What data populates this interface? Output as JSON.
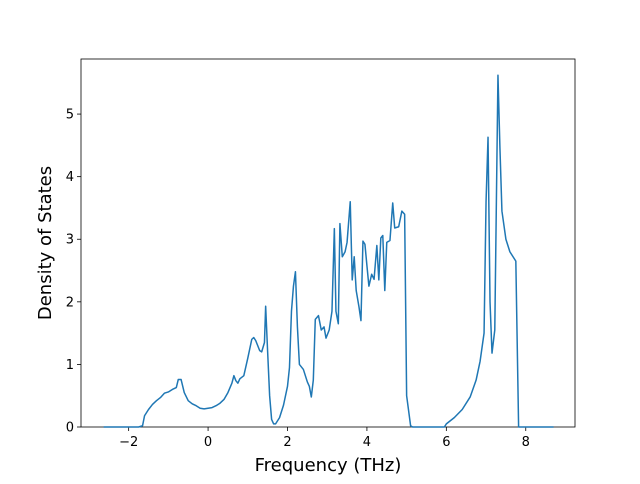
{
  "chart_data": {
    "type": "line",
    "xlabel": "Frequency (THz)",
    "ylabel": "Density of States",
    "color": "#1f77b4",
    "xlim": [
      -3.2,
      9.24
    ],
    "ylim": [
      0,
      5.88
    ],
    "xticks": [
      {
        "value": -2,
        "label": "−2"
      },
      0,
      2,
      4,
      6,
      8
    ],
    "yticks": [
      0,
      1,
      2,
      3,
      4,
      5
    ],
    "x": [
      -2.63,
      -1.75,
      -1.65,
      -1.6,
      -1.5,
      -1.4,
      -1.3,
      -1.2,
      -1.1,
      -1.0,
      -0.9,
      -0.8,
      -0.75,
      -0.68,
      -0.6,
      -0.5,
      -0.4,
      -0.3,
      -0.2,
      -0.1,
      0,
      0.1,
      0.2,
      0.3,
      0.4,
      0.5,
      0.6,
      0.65,
      0.7,
      0.75,
      0.8,
      0.9,
      1.0,
      1.1,
      1.15,
      1.2,
      1.3,
      1.35,
      1.42,
      1.45,
      1.5,
      1.55,
      1.6,
      1.65,
      1.7,
      1.8,
      1.9,
      2.0,
      2.05,
      2.1,
      2.15,
      2.2,
      2.25,
      2.3,
      2.4,
      2.5,
      2.55,
      2.6,
      2.65,
      2.7,
      2.78,
      2.85,
      2.92,
      2.97,
      3.05,
      3.12,
      3.18,
      3.22,
      3.28,
      3.32,
      3.38,
      3.45,
      3.5,
      3.58,
      3.63,
      3.68,
      3.73,
      3.8,
      3.85,
      3.9,
      3.95,
      4.0,
      4.05,
      4.12,
      4.18,
      4.25,
      4.3,
      4.35,
      4.4,
      4.45,
      4.5,
      4.58,
      4.65,
      4.7,
      4.8,
      4.88,
      4.95,
      5.0,
      5.1,
      5.15,
      5.95,
      6.0,
      6.2,
      6.4,
      6.6,
      6.75,
      6.85,
      6.95,
      7.0,
      7.05,
      7.1,
      7.15,
      7.22,
      7.3,
      7.35,
      7.4,
      7.5,
      7.6,
      7.75,
      7.82,
      8.7
    ],
    "values": [
      0,
      0,
      0.02,
      0.18,
      0.28,
      0.36,
      0.42,
      0.47,
      0.54,
      0.56,
      0.6,
      0.63,
      0.76,
      0.76,
      0.55,
      0.42,
      0.37,
      0.34,
      0.3,
      0.29,
      0.3,
      0.31,
      0.34,
      0.38,
      0.44,
      0.55,
      0.7,
      0.82,
      0.74,
      0.7,
      0.77,
      0.82,
      1.1,
      1.4,
      1.43,
      1.38,
      1.22,
      1.2,
      1.35,
      1.93,
      1.2,
      0.5,
      0.12,
      0.05,
      0.05,
      0.15,
      0.35,
      0.65,
      0.95,
      1.85,
      2.25,
      2.48,
      1.6,
      1.0,
      0.92,
      0.72,
      0.65,
      0.48,
      0.75,
      1.72,
      1.78,
      1.55,
      1.6,
      1.42,
      1.55,
      1.85,
      3.17,
      1.85,
      1.65,
      3.25,
      2.72,
      2.8,
      2.95,
      3.6,
      2.35,
      2.72,
      2.18,
      1.92,
      1.7,
      2.97,
      2.92,
      2.58,
      2.25,
      2.44,
      2.36,
      2.9,
      2.35,
      3.02,
      3.06,
      2.18,
      2.95,
      2.98,
      3.58,
      3.18,
      3.2,
      3.45,
      3.4,
      0.5,
      0.02,
      0,
      0,
      0.05,
      0.15,
      0.28,
      0.48,
      0.75,
      1.05,
      1.5,
      3.6,
      4.63,
      2.0,
      1.18,
      1.55,
      5.62,
      4.45,
      3.45,
      3.0,
      2.8,
      2.65,
      0,
      0
    ]
  }
}
